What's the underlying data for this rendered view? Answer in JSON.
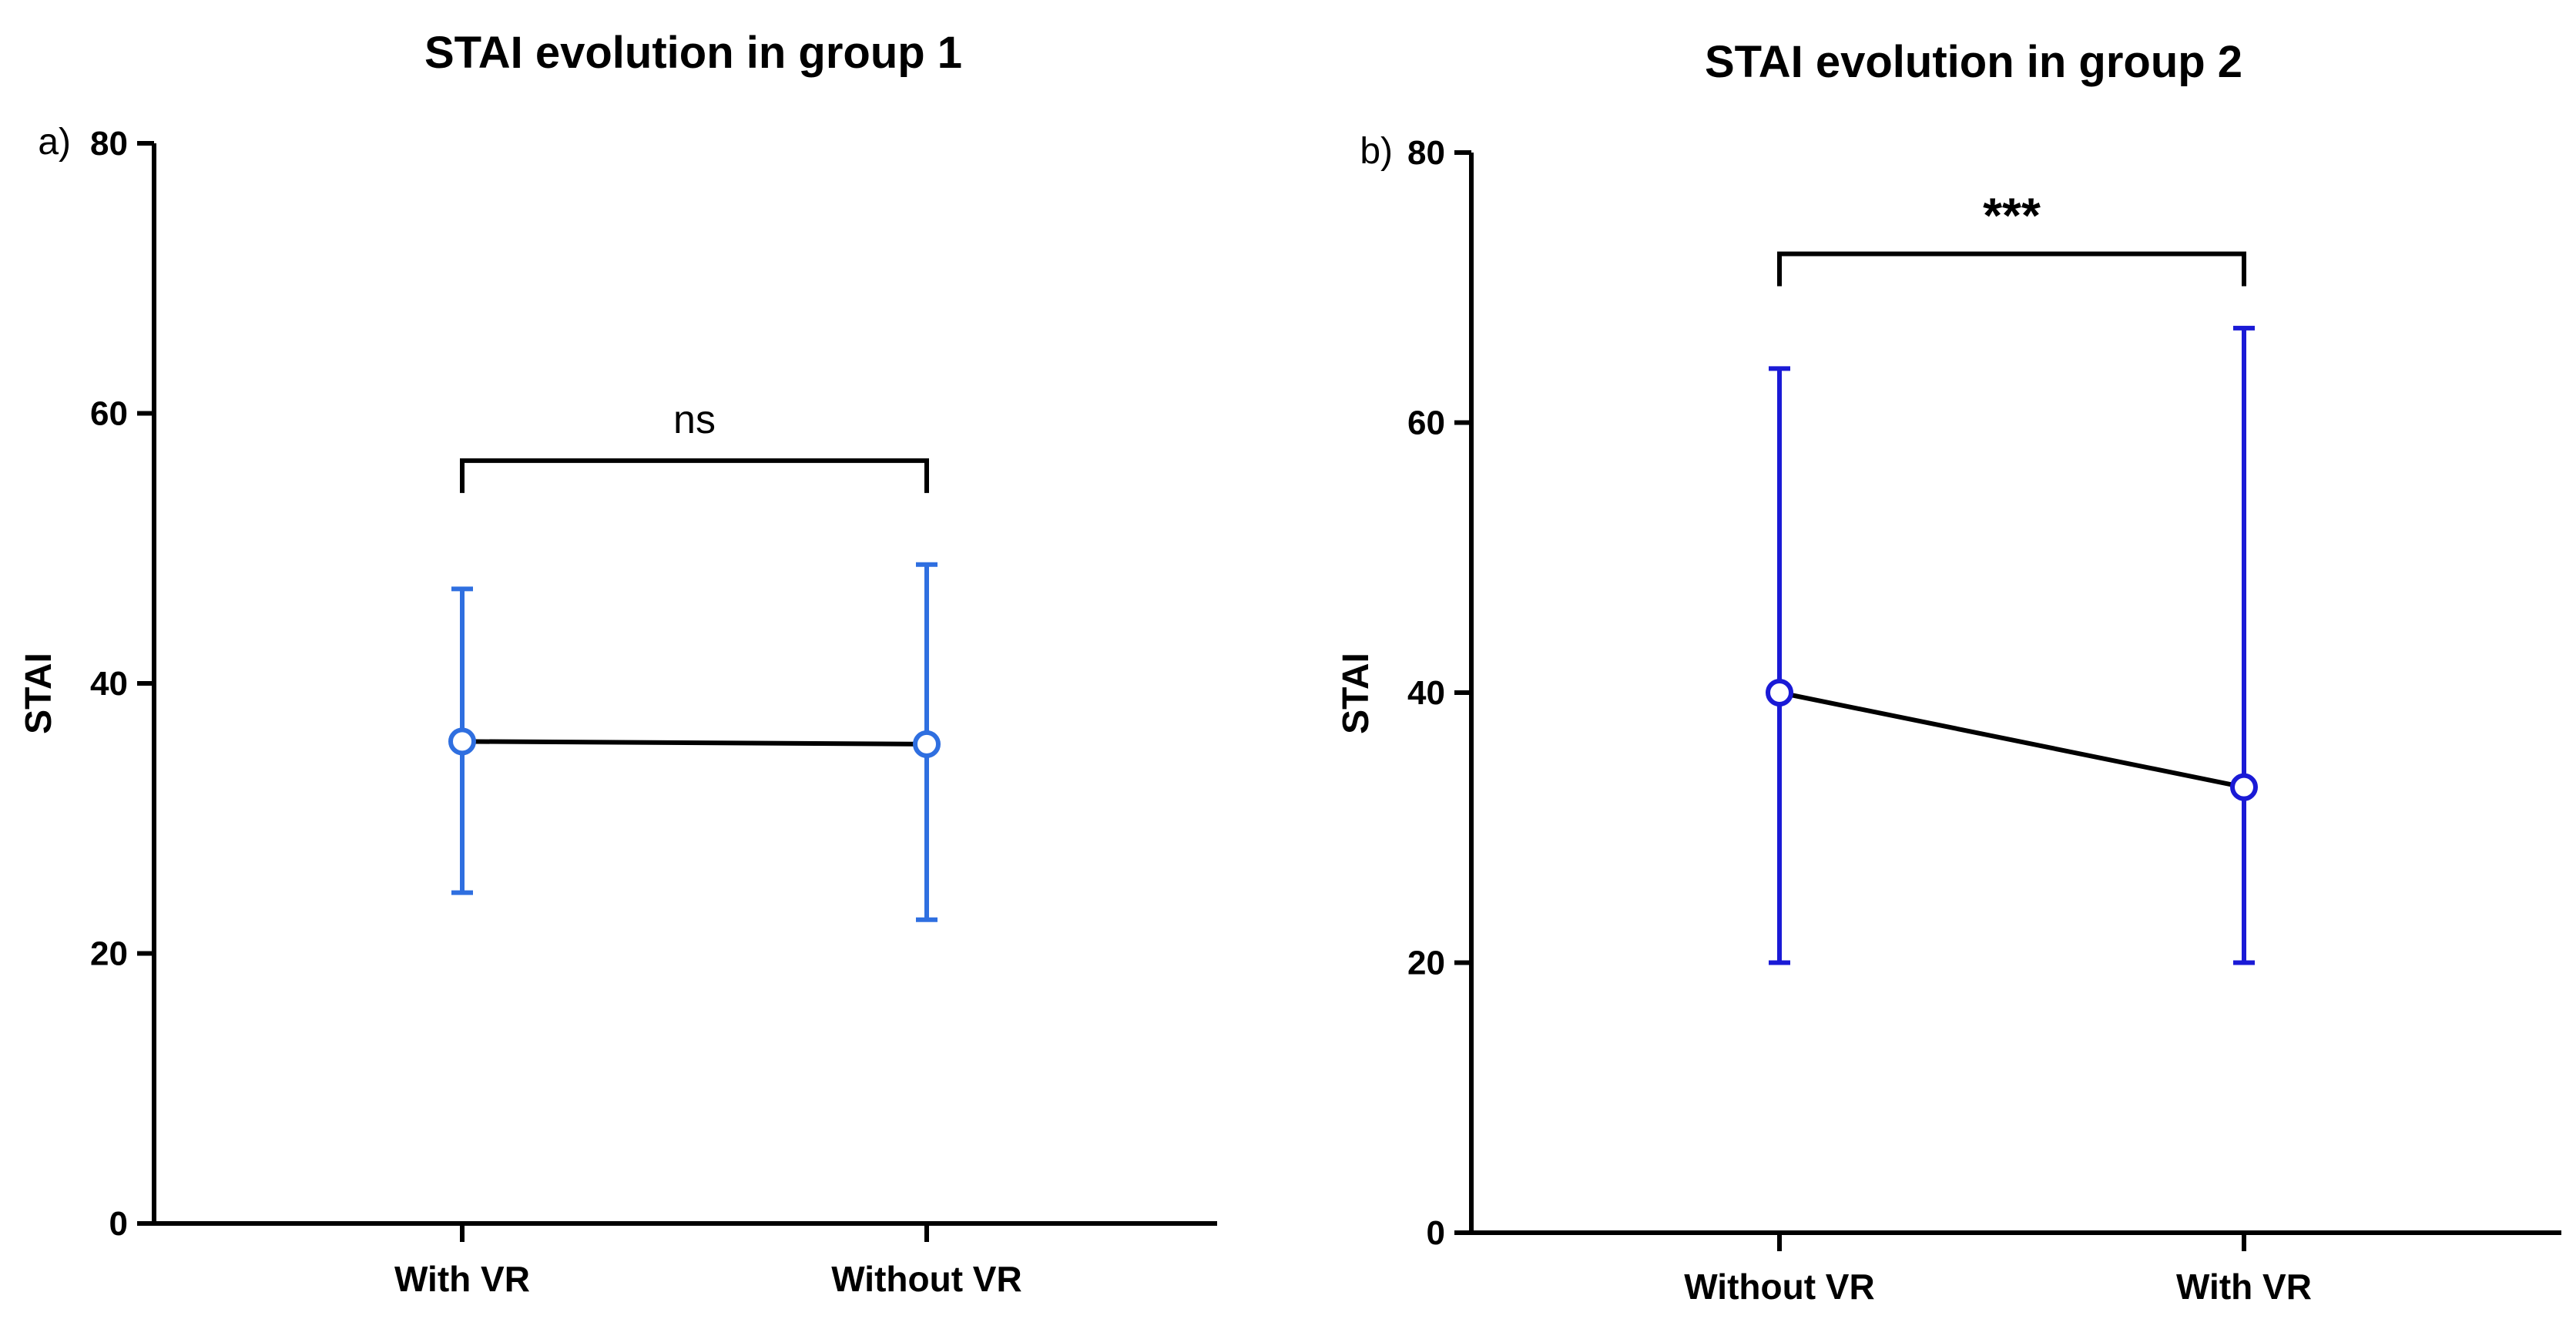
{
  "chart_data": [
    {
      "type": "line",
      "panel_label": "a)",
      "title": "STAI evolution in group 1",
      "ylabel": "STAI",
      "xlabel": "",
      "ylim": [
        0,
        80
      ],
      "yticks": [
        "0",
        "20",
        "40",
        "60",
        "80"
      ],
      "categories": [
        "With VR",
        "Without VR"
      ],
      "series": [
        {
          "values": [
            35.7,
            35.5
          ],
          "error_low": [
            24.5,
            22.5
          ],
          "error_high": [
            47.0,
            48.8
          ],
          "color": "#2F6FE0"
        }
      ],
      "annotation": {
        "text": "ns",
        "between": [
          0,
          1
        ],
        "y": 56.5
      }
    },
    {
      "type": "line",
      "panel_label": "b)",
      "title": "STAI evolution in group 2",
      "ylabel": "STAI",
      "xlabel": "",
      "ylim": [
        0,
        80
      ],
      "yticks": [
        "0",
        "20",
        "40",
        "60",
        "80"
      ],
      "categories": [
        "Without VR",
        "With VR"
      ],
      "series": [
        {
          "values": [
            40,
            33
          ],
          "error_low": [
            20,
            20
          ],
          "error_high": [
            64,
            67
          ],
          "color": "#1A1AD6"
        }
      ],
      "annotation": {
        "text": "***",
        "between": [
          0,
          1
        ],
        "y": 72.5
      }
    }
  ]
}
